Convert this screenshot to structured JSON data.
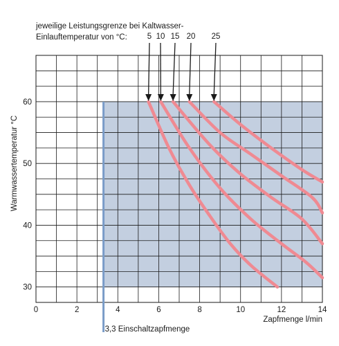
{
  "chart_data": {
    "type": "line",
    "header_line1": "jeweilige Leistungsgrenze bei Kaltwasser-",
    "header_line2": "Einlauftemperatur von °C:",
    "xlabel": "Zapfmenge l/min",
    "ylabel": "Warmwassertemperatur °C",
    "xlim": [
      0,
      14
    ],
    "ylim": [
      27.5,
      67.5
    ],
    "x_ticks": [
      "0",
      "2",
      "4",
      "6",
      "8",
      "10",
      "12",
      "14"
    ],
    "y_ticks": [
      "30",
      "40",
      "50",
      "60"
    ],
    "grid": true,
    "operating_area": {
      "x_min": 3.3,
      "x_max": 14,
      "y_min": 30,
      "y_max": 60,
      "color": "#c3cfe0"
    },
    "switch_on_line": {
      "x": 3.3,
      "y_from": 60,
      "y_to": 0,
      "label": "3,3 Einschaltzapfmenge",
      "color": "#7a9cc8"
    },
    "curve_color": "#ef8a92",
    "series": [
      {
        "name": "5",
        "x": [
          5.5,
          6.5,
          7.5,
          8.5,
          9.5,
          10.5,
          11.8
        ],
        "y": [
          60,
          52.5,
          46.5,
          41.5,
          37,
          33.5,
          30
        ]
      },
      {
        "name": "10",
        "x": [
          6.1,
          7.5,
          9,
          10.5,
          12,
          13.2,
          14
        ],
        "y": [
          60,
          52.5,
          46,
          41,
          37,
          34,
          31.5
        ]
      },
      {
        "name": "15",
        "x": [
          6.7,
          8.5,
          10,
          11.5,
          13,
          14
        ],
        "y": [
          60,
          53,
          48.3,
          44.5,
          41,
          37
        ]
      },
      {
        "name": "20",
        "x": [
          7.5,
          9,
          10.5,
          12,
          13.5,
          14
        ],
        "y": [
          60,
          55,
          51.5,
          48,
          44.5,
          42
        ]
      },
      {
        "name": "25",
        "x": [
          8.7,
          10,
          11.5,
          13,
          14
        ],
        "y": [
          60,
          56.3,
          52.5,
          49,
          47
        ]
      }
    ]
  }
}
